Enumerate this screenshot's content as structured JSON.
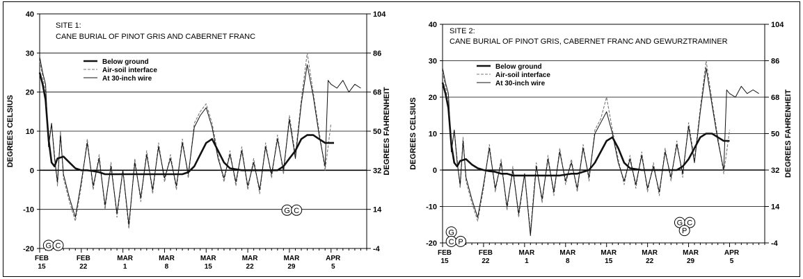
{
  "chart_data": [
    {
      "type": "line",
      "title": "SITE 1:",
      "subtitle": "CANE BURIAL OF PINOT GRIS AND CABERNET FRANC",
      "ylabel": "DEGREES CELSIUS",
      "ylabel_right": "DEGREES FAHRENHEIT",
      "ylim": [
        -20,
        40
      ],
      "yticks": [
        40,
        30,
        20,
        10,
        0,
        -10,
        -20
      ],
      "yticks_right": [
        "104",
        "86",
        "68",
        "50",
        "32",
        "14",
        "-4"
      ],
      "xlim": [
        0,
        55
      ],
      "xticks": [
        {
          "x": 0,
          "month": "FEB",
          "day": "15"
        },
        {
          "x": 7,
          "month": "FEB",
          "day": "22"
        },
        {
          "x": 14,
          "month": "MAR",
          "day": "1"
        },
        {
          "x": 21,
          "month": "MAR",
          "day": "8"
        },
        {
          "x": 28,
          "month": "MAR",
          "day": "15"
        },
        {
          "x": 35,
          "month": "MAR",
          "day": "22"
        },
        {
          "x": 42,
          "month": "MAR",
          "day": "29"
        },
        {
          "x": 49,
          "month": "APR",
          "day": "5"
        }
      ],
      "grid": "horizontal",
      "legend_position": "top-left",
      "series": [
        {
          "name": "Below ground",
          "style": "thick",
          "x": [
            0,
            0.5,
            1,
            1.5,
            2,
            2.5,
            3,
            4,
            5,
            6,
            7,
            8,
            9,
            10,
            11,
            12,
            13,
            14,
            16,
            18,
            20,
            22,
            23,
            24,
            25,
            26,
            27,
            28,
            29,
            30,
            31,
            32,
            34,
            36,
            38,
            40,
            41,
            42,
            43,
            44,
            45,
            46,
            47,
            48,
            49,
            49.5
          ],
          "y": [
            25,
            22,
            18,
            8,
            2,
            1,
            3,
            3.5,
            2,
            0.5,
            0,
            0,
            -0.2,
            -0.5,
            -1,
            -1,
            -1,
            -1,
            -1,
            -1,
            -1,
            -1,
            -1,
            -1,
            -0.5,
            1,
            4,
            7,
            8,
            5,
            2,
            0.5,
            0,
            0,
            0,
            0,
            1,
            3,
            5,
            8,
            9,
            9,
            8,
            7,
            7,
            7
          ]
        },
        {
          "name": "Air-soil interface",
          "style": "dashed",
          "x": [
            0,
            0.5,
            1,
            1.5,
            2,
            2.5,
            3,
            3.5,
            4,
            5,
            6,
            7,
            8,
            9,
            10,
            11,
            12,
            13,
            14,
            15,
            16,
            17,
            18,
            19,
            20,
            21,
            22,
            23,
            24,
            25,
            26,
            27,
            28,
            29,
            30,
            31,
            32,
            33,
            34,
            35,
            36,
            37,
            38,
            39,
            40,
            41,
            42,
            43,
            44,
            45,
            46,
            47,
            48,
            49
          ],
          "y": [
            28,
            24,
            20,
            6,
            12,
            4,
            -4,
            10,
            -2,
            -8,
            -13,
            -4,
            8,
            -5,
            4,
            -10,
            2,
            -12,
            0,
            -15,
            3,
            -8,
            5,
            -6,
            7,
            -3,
            4,
            -5,
            8,
            -2,
            12,
            15,
            17,
            12,
            4,
            -3,
            5,
            -4,
            6,
            -5,
            3,
            -6,
            7,
            -2,
            9,
            -1,
            14,
            4,
            18,
            30,
            20,
            10,
            0,
            12
          ]
        },
        {
          "name": "At 30-inch wire",
          "style": "thin",
          "x": [
            0,
            0.5,
            1,
            1.5,
            2,
            2.5,
            3,
            3.5,
            4,
            5,
            6,
            7,
            8,
            9,
            10,
            11,
            12,
            13,
            14,
            15,
            16,
            17,
            18,
            19,
            20,
            21,
            22,
            23,
            24,
            25,
            26,
            27,
            28,
            29,
            30,
            31,
            32,
            33,
            34,
            35,
            36,
            37,
            38,
            39,
            40,
            41,
            42,
            43,
            44,
            45,
            46,
            47,
            48,
            48.5,
            49,
            50,
            51,
            52,
            53,
            54
          ],
          "y": [
            29,
            25,
            22,
            6,
            12,
            3,
            -3,
            9,
            -1,
            -7,
            -12,
            -3,
            7,
            -4,
            3,
            -9,
            1,
            -11,
            0,
            -14,
            2,
            -7,
            4,
            -5,
            6,
            -2,
            3,
            -4,
            7,
            -1,
            11,
            14,
            16,
            11,
            3,
            -2,
            4,
            -3,
            5,
            -4,
            2,
            -5,
            6,
            -1,
            8,
            0,
            13,
            3,
            17,
            27,
            19,
            9,
            1,
            23,
            22,
            21,
            23,
            20,
            22,
            21
          ]
        }
      ],
      "annotations": [
        {
          "text": "G",
          "x": 1.5,
          "y": -19.2
        },
        {
          "text": "C",
          "x": 3.1,
          "y": -19.2
        },
        {
          "text": "G",
          "x": 41.6,
          "y": -10.2
        },
        {
          "text": "C",
          "x": 43.2,
          "y": -10.2
        }
      ]
    },
    {
      "type": "line",
      "title": "SITE 2:",
      "subtitle": "CANE BURIAL OF PINOT GRIS, CABERNET FRANC AND GEWURZTRAMINER",
      "ylabel": "DEGREES CELSIUS",
      "ylabel_right": "DEGREES FAHRENHEIT",
      "ylim": [
        -20,
        40
      ],
      "yticks": [
        40,
        30,
        20,
        10,
        0,
        -10,
        -20
      ],
      "yticks_right": [
        "104",
        "86",
        "68",
        "50",
        "32",
        "14",
        "-4"
      ],
      "xlim": [
        0,
        55
      ],
      "xticks": [
        {
          "x": 0,
          "month": "FEB",
          "day": "15"
        },
        {
          "x": 7,
          "month": "FEB",
          "day": "22"
        },
        {
          "x": 14,
          "month": "MAR",
          "day": "1"
        },
        {
          "x": 21,
          "month": "MAR",
          "day": "8"
        },
        {
          "x": 28,
          "month": "MAR",
          "day": "15"
        },
        {
          "x": 35,
          "month": "MAR",
          "day": "22"
        },
        {
          "x": 42,
          "month": "MAR",
          "day": "29"
        },
        {
          "x": 49,
          "month": "APR",
          "day": "5"
        }
      ],
      "grid": "horizontal",
      "legend_position": "top-left",
      "series": [
        {
          "name": "Below ground",
          "style": "thick",
          "x": [
            0,
            0.5,
            1,
            1.5,
            2,
            2.5,
            3,
            4,
            5,
            6,
            7,
            8,
            9,
            10,
            11,
            12,
            13,
            14,
            16,
            18,
            20,
            22,
            23,
            24,
            25,
            26,
            27,
            28,
            29,
            30,
            31,
            32,
            34,
            36,
            38,
            40,
            41,
            42,
            43,
            44,
            45,
            46,
            47,
            48,
            49
          ],
          "y": [
            24,
            21,
            17,
            7,
            2,
            1,
            2.5,
            3,
            1.5,
            0.5,
            0,
            -0.3,
            -0.5,
            -1,
            -1,
            -1.5,
            -1.5,
            -1.5,
            -1.5,
            -1.5,
            -1.5,
            -1,
            -1,
            -0.5,
            0,
            2,
            5,
            8,
            9,
            6,
            2,
            0.5,
            0,
            0,
            0,
            0,
            1,
            3,
            6,
            9,
            10,
            10,
            9,
            8,
            8
          ]
        },
        {
          "name": "Air-soil interface",
          "style": "dashed",
          "x": [
            0,
            0.5,
            1,
            1.5,
            2,
            2.5,
            3,
            3.5,
            4,
            5,
            6,
            7,
            8,
            9,
            10,
            11,
            12,
            13,
            14,
            15,
            16,
            17,
            18,
            19,
            20,
            21,
            22,
            23,
            24,
            25,
            26,
            27,
            28,
            29,
            30,
            31,
            32,
            33,
            34,
            35,
            36,
            37,
            38,
            39,
            40,
            41,
            42,
            43,
            44,
            45,
            46,
            47,
            48,
            49
          ],
          "y": [
            27,
            23,
            19,
            5,
            11,
            3,
            -5,
            9,
            -3,
            -9,
            -14,
            -5,
            7,
            -6,
            3,
            -11,
            1,
            -13,
            -1,
            -17,
            2,
            -9,
            4,
            -7,
            6,
            -4,
            3,
            -6,
            7,
            -3,
            11,
            14,
            20,
            11,
            3,
            -4,
            4,
            -5,
            5,
            -6,
            2,
            -7,
            6,
            -3,
            8,
            -2,
            13,
            3,
            17,
            30,
            19,
            9,
            -1,
            11
          ]
        },
        {
          "name": "At 30-inch wire",
          "style": "thin",
          "x": [
            0,
            0.5,
            1,
            1.5,
            2,
            2.5,
            3,
            3.5,
            4,
            5,
            6,
            7,
            8,
            9,
            10,
            11,
            12,
            13,
            14,
            15,
            16,
            17,
            18,
            19,
            20,
            21,
            22,
            23,
            24,
            25,
            26,
            27,
            28,
            29,
            30,
            31,
            32,
            33,
            34,
            35,
            36,
            37,
            38,
            39,
            40,
            41,
            42,
            43,
            44,
            45,
            46,
            47,
            48,
            48.5,
            49,
            50,
            51,
            52,
            53,
            54
          ],
          "y": [
            28,
            24,
            21,
            5,
            11,
            2,
            -4,
            8,
            -2,
            -8,
            -13,
            -4,
            6,
            -5,
            2,
            -10,
            0,
            -12,
            -1,
            -18,
            1,
            -8,
            3,
            -6,
            5,
            -3,
            2,
            -5,
            6,
            -2,
            10,
            13,
            16,
            10,
            2,
            -3,
            3,
            -4,
            4,
            -5,
            1,
            -6,
            5,
            -2,
            7,
            -1,
            12,
            2,
            16,
            28,
            18,
            8,
            0,
            22,
            21,
            20,
            23,
            21,
            22,
            21
          ]
        }
      ],
      "annotations": [
        {
          "text": "G",
          "x": 1.5,
          "y": -17.0
        },
        {
          "text": "C",
          "x": 1.5,
          "y": -19.6
        },
        {
          "text": "P",
          "x": 3.1,
          "y": -19.6
        },
        {
          "text": "G",
          "x": 40.5,
          "y": -14.4
        },
        {
          "text": "C",
          "x": 42.2,
          "y": -14.4
        },
        {
          "text": "P",
          "x": 41.3,
          "y": -16.6
        }
      ]
    }
  ]
}
